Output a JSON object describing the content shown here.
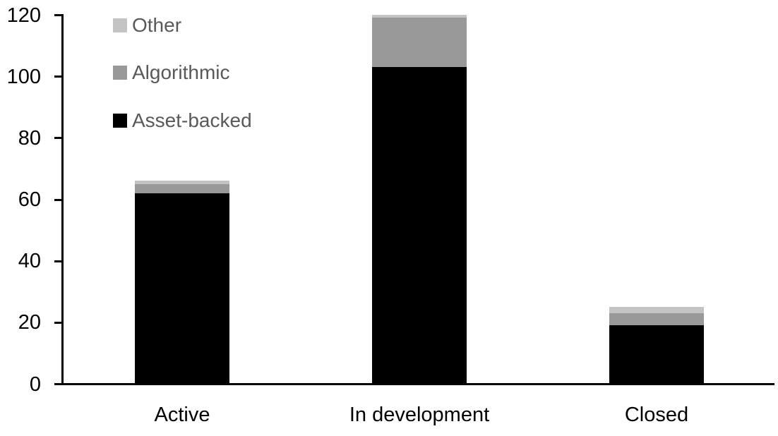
{
  "chart_data": {
    "type": "bar",
    "stacked": true,
    "title": "",
    "xlabel": "",
    "ylabel": "",
    "categories": [
      "Active",
      "In development",
      "Closed"
    ],
    "series": [
      {
        "name": "Asset-backed",
        "color": "#000000",
        "values": [
          62,
          103,
          19
        ]
      },
      {
        "name": "Algorithmic",
        "color": "#999999",
        "values": [
          3,
          16,
          4
        ]
      },
      {
        "name": "Other",
        "color": "#c3c3c3",
        "values": [
          1,
          1,
          2
        ]
      }
    ],
    "totals": [
      66,
      120,
      25
    ],
    "ylim": [
      0,
      120
    ],
    "yticks": [
      0,
      20,
      40,
      60,
      80,
      100,
      120
    ],
    "grid": false,
    "legend_position": "top-left",
    "legend_order": [
      "Other",
      "Algorithmic",
      "Asset-backed"
    ],
    "legend_text_color": "#595959",
    "axis_color": "#000000",
    "background_color": "#ffffff"
  }
}
